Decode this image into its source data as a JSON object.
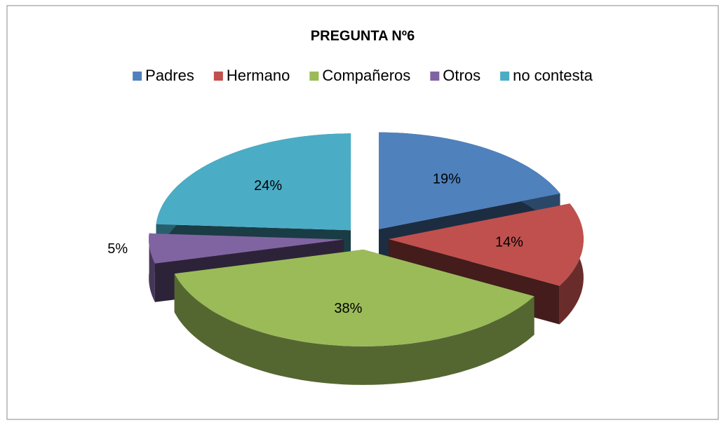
{
  "chart_data": {
    "type": "pie",
    "title": "PREGUNTA Nº6",
    "categories": [
      "Padres",
      "Hermano",
      "Compañeros",
      "Otros",
      "no contesta"
    ],
    "values": [
      19,
      14,
      38,
      5,
      24
    ],
    "value_labels": [
      "19%",
      "14%",
      "38%",
      "5%",
      "24%"
    ],
    "colors": [
      "#4f81bd",
      "#c0504d",
      "#9bbb59",
      "#8064a2",
      "#4bacc6"
    ],
    "legend": "top"
  }
}
